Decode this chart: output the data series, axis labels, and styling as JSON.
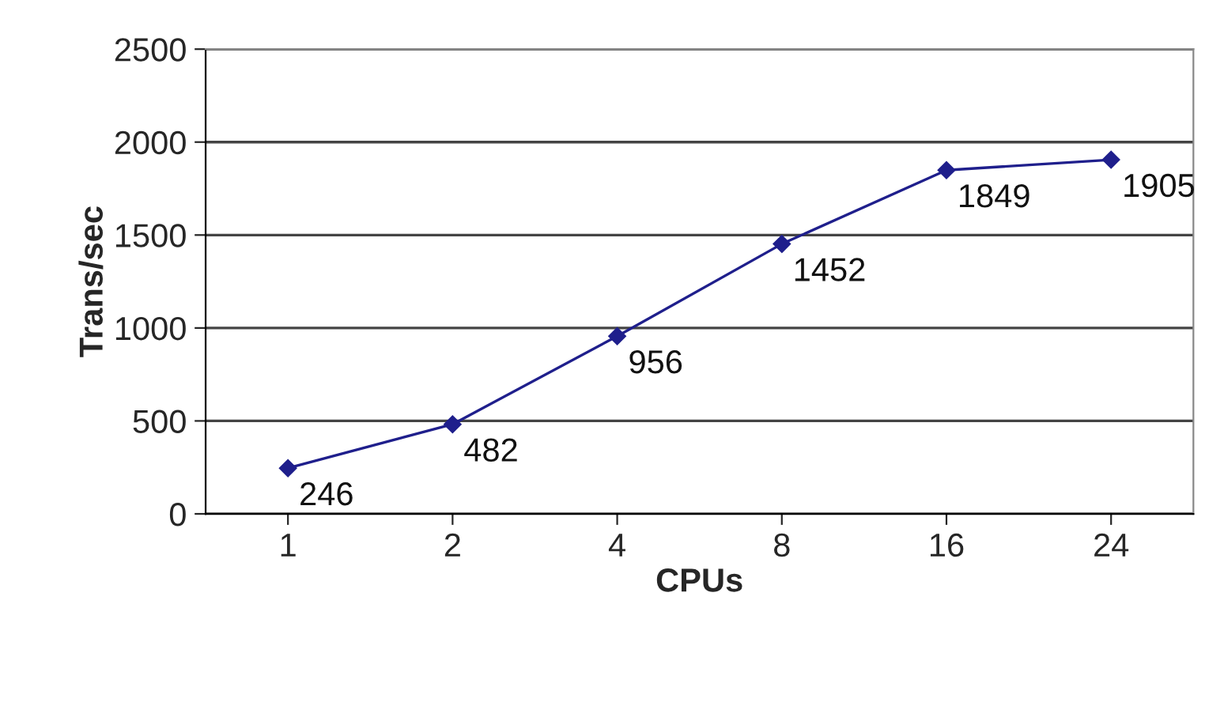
{
  "chart_data": {
    "type": "line",
    "xlabel": "CPUs",
    "ylabel": "Trans/sec",
    "categories": [
      "1",
      "2",
      "4",
      "8",
      "16",
      "24"
    ],
    "series": [
      {
        "color": "#1f1f8c",
        "values": [
          246,
          482,
          956,
          1452,
          1849,
          1905
        ]
      }
    ],
    "ylim": [
      0,
      2500
    ],
    "yticks": [
      0,
      500,
      1000,
      1500,
      2000,
      2500
    ],
    "grid": "y",
    "marker": "diamond",
    "line_style": "solid",
    "data_labels": true
  }
}
